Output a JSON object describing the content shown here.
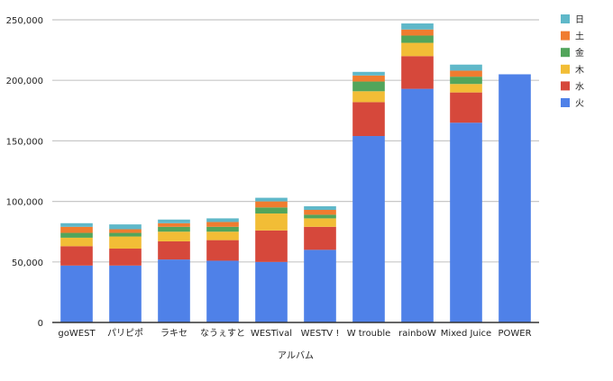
{
  "chart_data": {
    "type": "bar",
    "stacked": true,
    "title": "",
    "xlabel": "アルバム",
    "ylabel": "",
    "ylim": [
      0,
      250000
    ],
    "yticks": [
      0,
      50000,
      100000,
      150000,
      200000,
      250000
    ],
    "ytick_labels": [
      "0",
      "50,000",
      "100,000",
      "150,000",
      "200,000",
      "250,000"
    ],
    "grid": true,
    "legend_position": "right",
    "categories": [
      "goWEST",
      "パリピポ",
      "ラキセ",
      "なうぇすと",
      "WESTival",
      "WESTV !",
      "W trouble",
      "rainboW",
      "Mixed Juice",
      "POWER"
    ],
    "series": [
      {
        "name": "火",
        "color": "#4f81e8",
        "values": [
          47000,
          47000,
          52000,
          51000,
          50000,
          60000,
          154000,
          193000,
          165000,
          205000
        ]
      },
      {
        "name": "水",
        "color": "#d6483b",
        "values": [
          16000,
          14000,
          15000,
          17000,
          26000,
          19000,
          28000,
          27000,
          25000,
          0
        ]
      },
      {
        "name": "木",
        "color": "#f2bd36",
        "values": [
          7000,
          10000,
          8000,
          7000,
          14000,
          7000,
          9000,
          11000,
          7000,
          0
        ]
      },
      {
        "name": "金",
        "color": "#52a55b",
        "values": [
          4000,
          3000,
          4000,
          4000,
          5000,
          3000,
          8000,
          6000,
          6000,
          0
        ]
      },
      {
        "name": "土",
        "color": "#f07c2f",
        "values": [
          5000,
          3000,
          3000,
          4000,
          5000,
          4000,
          5000,
          5000,
          5000,
          0
        ]
      },
      {
        "name": "日",
        "color": "#5fb8c9",
        "values": [
          3000,
          4000,
          3000,
          3000,
          3000,
          3000,
          3000,
          5000,
          5000,
          0
        ]
      }
    ]
  }
}
